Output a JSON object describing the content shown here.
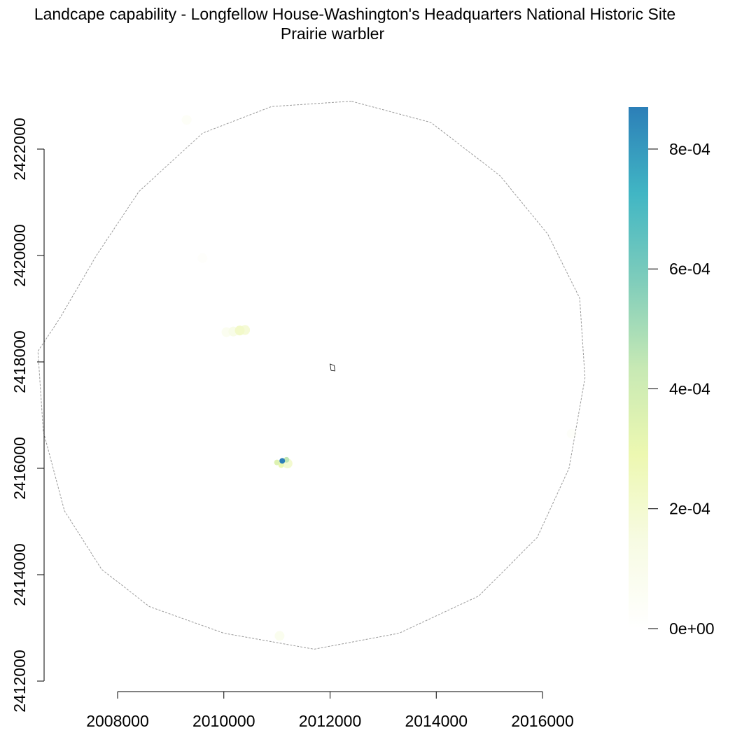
{
  "chart_data": {
    "type": "heatmap",
    "title": "Landcape capability - Longfellow House-Washington's Headquarters National Historic Site",
    "subtitle": "Prairie warbler",
    "xlabel": "",
    "ylabel": "",
    "xlim": [
      2006200,
      2016400
    ],
    "ylim": [
      2412000,
      2423300
    ],
    "x_ticks": [
      2008000,
      2010000,
      2012000,
      2014000,
      2016000
    ],
    "y_ticks": [
      2412000,
      2414000,
      2416000,
      2418000,
      2420000,
      2422000
    ],
    "x_tick_labels": [
      "2008000",
      "2010000",
      "2012000",
      "2014000",
      "2016000"
    ],
    "y_tick_labels": [
      "2412000",
      "2414000",
      "2416000",
      "2418000",
      "2420000",
      "2422000"
    ],
    "legend": {
      "position": "right",
      "min": 0,
      "max": 0.00087,
      "ticks": [
        0,
        0.0002,
        0.0004,
        0.0006,
        0.0008
      ],
      "tick_labels": [
        "0e+00",
        "2e-04",
        "4e-04",
        "6e-04",
        "8e-04"
      ],
      "colors": [
        "#ffffff",
        "#f7fbe3",
        "#edf8b1",
        "#c7e9b4",
        "#7fcdbb",
        "#41b6c4",
        "#2c7fb8"
      ]
    },
    "grid": false,
    "study_area_boundary": [
      [
        2012400,
        2422900
      ],
      [
        2010900,
        2422800
      ],
      [
        2009600,
        2422300
      ],
      [
        2008400,
        2421200
      ],
      [
        2007600,
        2420000
      ],
      [
        2006900,
        2418800
      ],
      [
        2006500,
        2418200
      ],
      [
        2006600,
        2416700
      ],
      [
        2007000,
        2415200
      ],
      [
        2007700,
        2414100
      ],
      [
        2008600,
        2413400
      ],
      [
        2010000,
        2412900
      ],
      [
        2011700,
        2412600
      ],
      [
        2013300,
        2412900
      ],
      [
        2014800,
        2413600
      ],
      [
        2015900,
        2414700
      ],
      [
        2016500,
        2416000
      ],
      [
        2016800,
        2417700
      ],
      [
        2016700,
        2419200
      ],
      [
        2016100,
        2420400
      ],
      [
        2015200,
        2421500
      ],
      [
        2013900,
        2422500
      ]
    ],
    "site_boundary": [
      [
        2012000,
        2417960
      ],
      [
        2012080,
        2417930
      ],
      [
        2012090,
        2417830
      ],
      [
        2012020,
        2417840
      ]
    ],
    "cells": [
      {
        "x": 2011100,
        "y": 2416140,
        "value": 0.00087
      },
      {
        "x": 2011180,
        "y": 2416160,
        "value": 0.00045
      },
      {
        "x": 2011000,
        "y": 2416110,
        "value": 0.00035
      },
      {
        "x": 2011080,
        "y": 2416060,
        "value": 0.0003
      },
      {
        "x": 2011200,
        "y": 2416090,
        "value": 0.0002
      },
      {
        "x": 2010300,
        "y": 2418590,
        "value": 0.00022
      },
      {
        "x": 2010400,
        "y": 2418600,
        "value": 0.00018
      },
      {
        "x": 2010180,
        "y": 2418570,
        "value": 0.00012
      },
      {
        "x": 2010050,
        "y": 2418560,
        "value": 8e-05
      },
      {
        "x": 2009300,
        "y": 2422550,
        "value": 4e-05
      },
      {
        "x": 2011050,
        "y": 2412850,
        "value": 9e-05
      },
      {
        "x": 2016550,
        "y": 2416650,
        "value": 3e-05
      },
      {
        "x": 2009600,
        "y": 2419950,
        "value": 2e-05
      }
    ]
  }
}
